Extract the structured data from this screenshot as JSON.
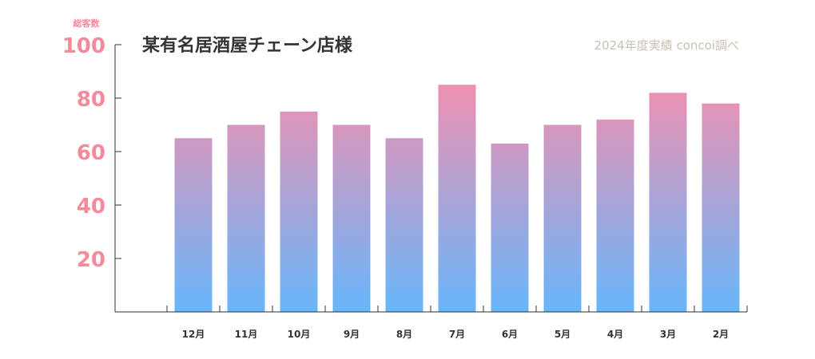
{
  "chart_data": {
    "type": "bar",
    "title": "某有名居酒屋チェーン店様",
    "source_note": "2024年度実績 concoi調べ",
    "ylabel": "総客数",
    "xlabel": "",
    "ylim": [
      0,
      100
    ],
    "yticks": [
      20,
      40,
      60,
      80,
      100
    ],
    "categories": [
      "12月",
      "11月",
      "10月",
      "9月",
      "8月",
      "7月",
      "6月",
      "5月",
      "4月",
      "3月",
      "2月"
    ],
    "values": [
      65,
      70,
      75,
      70,
      65,
      85,
      63,
      70,
      72,
      82,
      78
    ],
    "grid": false,
    "colors": {
      "bar_top": "#ef90b0",
      "bar_bottom": "#68b6fb",
      "ytick": "#f58a9a",
      "title": "#333333",
      "note": "#c8bfb0"
    }
  }
}
